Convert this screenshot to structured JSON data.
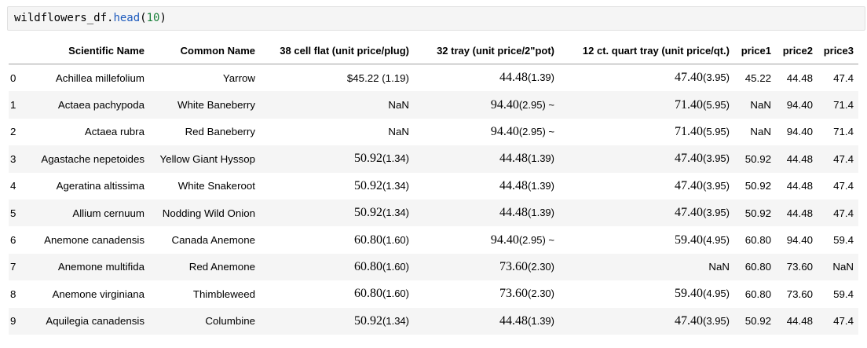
{
  "code": {
    "var": "wildflowers_df",
    "dot": ".",
    "fn": "head",
    "open": "(",
    "arg": "10",
    "close": ")"
  },
  "table": {
    "columns": [
      "",
      "Scientific Name",
      "Common Name",
      "38 cell flat (unit price/plug)",
      "32 tray (unit price/2\"pot)",
      "12 ct. quart tray (unit price/qt.)",
      "price1",
      "price2",
      "price3"
    ],
    "rows": [
      {
        "index": "0",
        "scientific": "Achillea millefolium",
        "common": "Yarrow",
        "c38": {
          "plain": "$45.22 (1.19)"
        },
        "c32": {
          "big": "44.48",
          "small": "(1.39)"
        },
        "c12": {
          "big": "47.40",
          "small": "(3.95)"
        },
        "price1": "45.22",
        "price2": "44.48",
        "price3": "47.4"
      },
      {
        "index": "1",
        "scientific": "Actaea pachypoda",
        "common": "White Baneberry",
        "c38": {
          "plain": "NaN"
        },
        "c32": {
          "big": "94.40",
          "small": "(2.95) ~"
        },
        "c12": {
          "big": "71.40",
          "small": "(5.95)"
        },
        "price1": "NaN",
        "price2": "94.40",
        "price3": "71.4"
      },
      {
        "index": "2",
        "scientific": "Actaea rubra",
        "common": "Red Baneberry",
        "c38": {
          "plain": "NaN"
        },
        "c32": {
          "big": "94.40",
          "small": "(2.95) ~"
        },
        "c12": {
          "big": "71.40",
          "small": "(5.95)"
        },
        "price1": "NaN",
        "price2": "94.40",
        "price3": "71.4"
      },
      {
        "index": "3",
        "scientific": "Agastache nepetoides",
        "common": "Yellow Giant Hyssop",
        "c38": {
          "big": "50.92",
          "small": "(1.34)"
        },
        "c32": {
          "big": "44.48",
          "small": "(1.39)"
        },
        "c12": {
          "big": "47.40",
          "small": "(3.95)"
        },
        "price1": "50.92",
        "price2": "44.48",
        "price3": "47.4"
      },
      {
        "index": "4",
        "scientific": "Ageratina altissima",
        "common": "White Snakeroot",
        "c38": {
          "big": "50.92",
          "small": "(1.34)"
        },
        "c32": {
          "big": "44.48",
          "small": "(1.39)"
        },
        "c12": {
          "big": "47.40",
          "small": "(3.95)"
        },
        "price1": "50.92",
        "price2": "44.48",
        "price3": "47.4"
      },
      {
        "index": "5",
        "scientific": "Allium cernuum",
        "common": "Nodding Wild Onion",
        "c38": {
          "big": "50.92",
          "small": "(1.34)"
        },
        "c32": {
          "big": "44.48",
          "small": "(1.39)"
        },
        "c12": {
          "big": "47.40",
          "small": "(3.95)"
        },
        "price1": "50.92",
        "price2": "44.48",
        "price3": "47.4"
      },
      {
        "index": "6",
        "scientific": "Anemone canadensis",
        "common": "Canada Anemone",
        "c38": {
          "big": "60.80",
          "small": "(1.60)"
        },
        "c32": {
          "big": "94.40",
          "small": "(2.95) ~"
        },
        "c12": {
          "big": "59.40",
          "small": "(4.95)"
        },
        "price1": "60.80",
        "price2": "94.40",
        "price3": "59.4"
      },
      {
        "index": "7",
        "scientific": "Anemone multifida",
        "common": "Red Anemone",
        "c38": {
          "big": "60.80",
          "small": "(1.60)"
        },
        "c32": {
          "big": "73.60",
          "small": "(2.30)"
        },
        "c12": {
          "plain": "NaN"
        },
        "price1": "60.80",
        "price2": "73.60",
        "price3": "NaN"
      },
      {
        "index": "8",
        "scientific": "Anemone virginiana",
        "common": "Thimbleweed",
        "c38": {
          "big": "60.80",
          "small": "(1.60)"
        },
        "c32": {
          "big": "73.60",
          "small": "(2.30)"
        },
        "c12": {
          "big": "59.40",
          "small": "(4.95)"
        },
        "price1": "60.80",
        "price2": "73.60",
        "price3": "59.4"
      },
      {
        "index": "9",
        "scientific": "Aquilegia canadensis",
        "common": "Columbine",
        "c38": {
          "big": "50.92",
          "small": "(1.34)"
        },
        "c32": {
          "big": "44.48",
          "small": "(1.39)"
        },
        "c12": {
          "big": "47.40",
          "small": "(3.95)"
        },
        "price1": "50.92",
        "price2": "44.48",
        "price3": "47.4"
      }
    ]
  }
}
